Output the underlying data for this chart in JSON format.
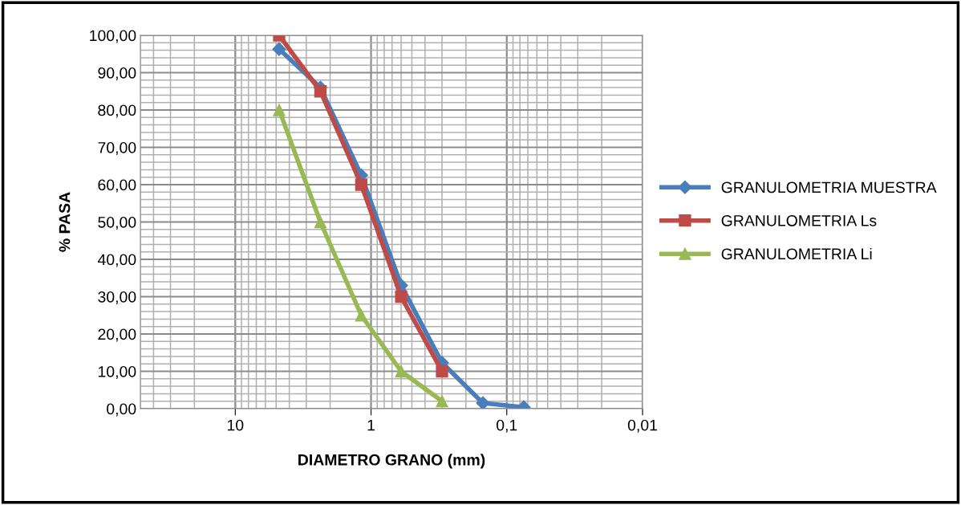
{
  "chart_data": {
    "type": "line",
    "xlabel": "DIAMETRO GRANO (mm)",
    "ylabel": "% PASA",
    "log": "x",
    "x": [
      4.75,
      2.36,
      1.18,
      0.6,
      0.3,
      0.15,
      0.075
    ],
    "series": [
      {
        "name": "GRANULOMETRIA MUESTRA",
        "color": "#4a7ebb",
        "marker": "diamond",
        "values": [
          96.3,
          86,
          62.5,
          33,
          12.3,
          1.5,
          0.4
        ]
      },
      {
        "name": "GRANULOMETRIA Ls",
        "color": "#be4b48",
        "marker": "square",
        "x": [
          4.75,
          2.36,
          1.18,
          0.6,
          0.3
        ],
        "values": [
          100,
          85,
          60,
          30,
          10
        ]
      },
      {
        "name": "GRANULOMETRIA Li",
        "color": "#98b954",
        "marker": "triangle",
        "x": [
          4.75,
          2.36,
          1.18,
          0.6,
          0.3
        ],
        "values": [
          80,
          50,
          25,
          10,
          2
        ]
      }
    ],
    "xlim": [
      50,
      0.01
    ],
    "xticks": [
      10,
      1,
      {
        "value": 0.1,
        "label": "0,1"
      },
      {
        "value": 0.01,
        "label": "0,01"
      }
    ],
    "ylim": [
      0,
      100
    ],
    "yticks": [
      {
        "value": 0,
        "label": "0,00"
      },
      {
        "value": 10,
        "label": "10,00"
      },
      {
        "value": 20,
        "label": "20,00"
      },
      {
        "value": 30,
        "label": "30,00"
      },
      {
        "value": 40,
        "label": "40,00"
      },
      {
        "value": 50,
        "label": "50,00"
      },
      {
        "value": 60,
        "label": "60,00"
      },
      {
        "value": 70,
        "label": "70,00"
      },
      {
        "value": 80,
        "label": "80,00"
      },
      {
        "value": 90,
        "label": "90,00"
      },
      {
        "value": 100,
        "label": "100,00"
      }
    ],
    "grid": true,
    "legend": "right"
  }
}
